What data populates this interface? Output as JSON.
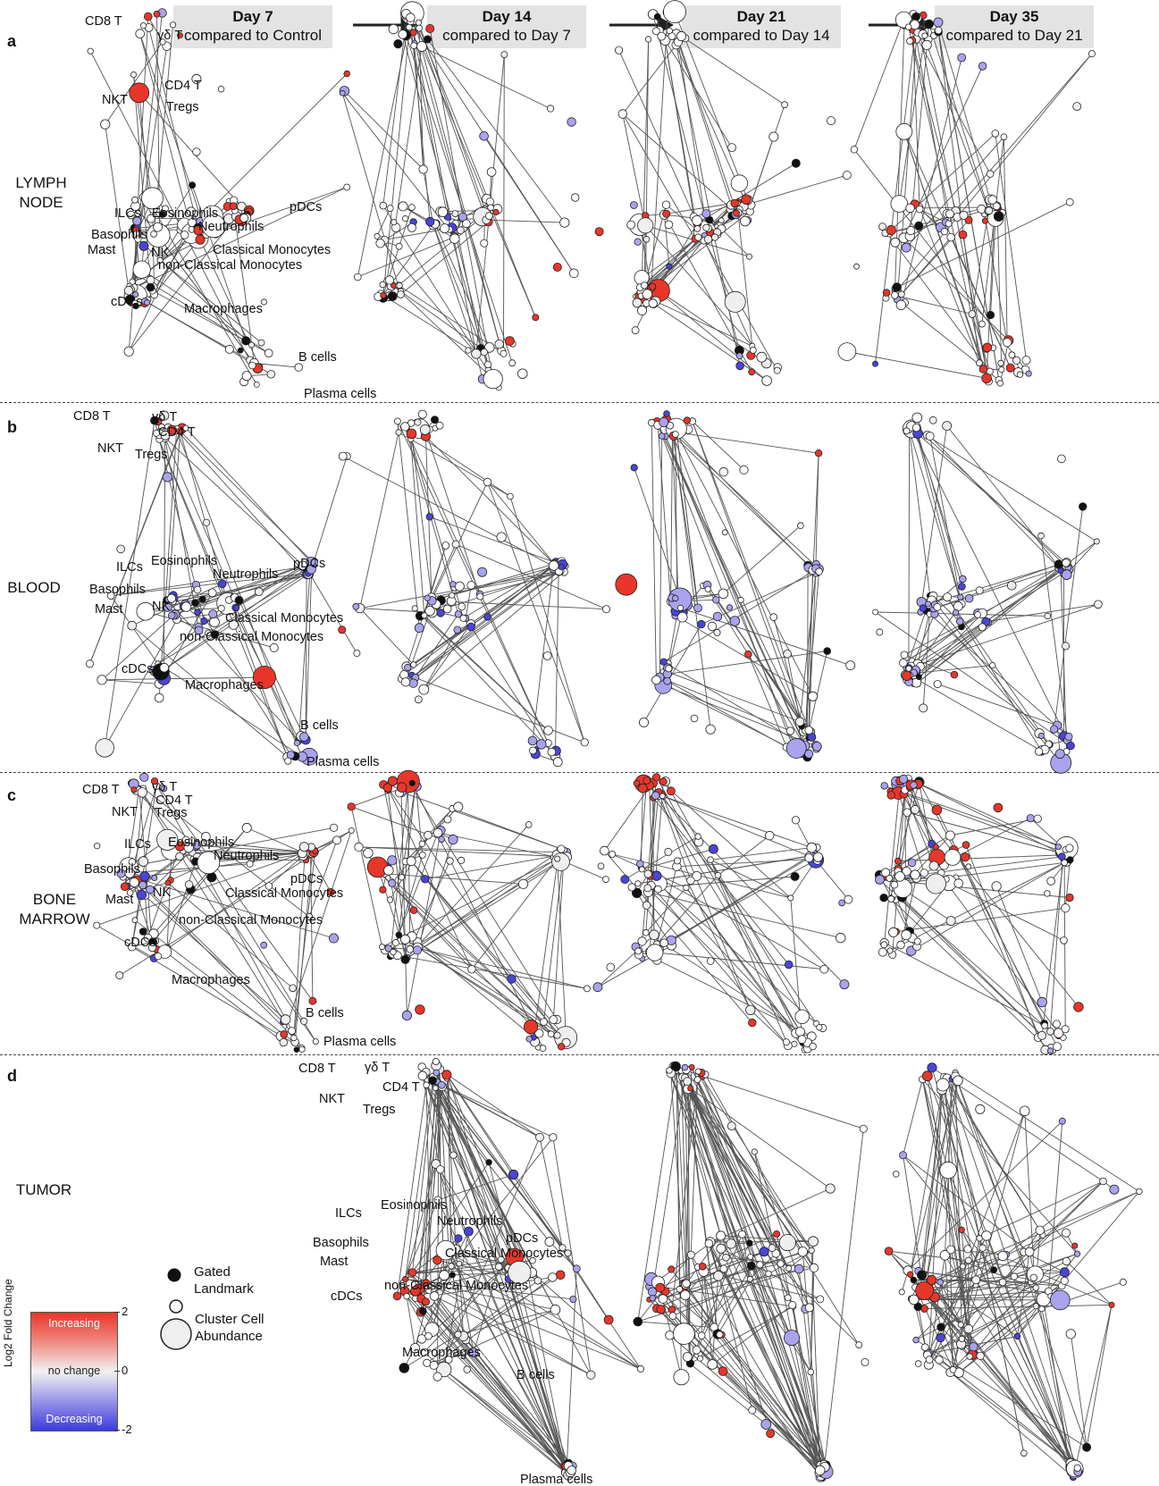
{
  "headers": [
    {
      "title": "Day 7",
      "subtitle": "compared to Control"
    },
    {
      "title": "Day 14",
      "subtitle": "compared to Day 7"
    },
    {
      "title": "Day 21",
      "subtitle": "compared to Day 14"
    },
    {
      "title": "Day 35",
      "subtitle": "compared to Day 21"
    }
  ],
  "panels": [
    {
      "letter": "a",
      "region_line1": "LYMPH",
      "region_line2": "NODE"
    },
    {
      "letter": "b",
      "region_line1": "BLOOD",
      "region_line2": ""
    },
    {
      "letter": "c",
      "region_line1": "BONE",
      "region_line2": "MARROW"
    },
    {
      "letter": "d",
      "region_line1": "TUMOR",
      "region_line2": ""
    }
  ],
  "cell_labels": {
    "cd8t": "CD8 T",
    "gdt": "γδ T",
    "cd4t": "CD4 T",
    "nkt": "NKT",
    "tregs": "Tregs",
    "ilcs": "ILCs",
    "eosinophils": "Eosinophils",
    "neutrophils": "Neutrophils",
    "pdcs": "pDCs",
    "basophils": "Basophils",
    "mast": "Mast",
    "nk": "NK",
    "classical_mono": "Classical Monocytes",
    "nonclassical_mono": "non-Classical Monocytes",
    "cdcs": "cDCs",
    "macrophages": "Macrophages",
    "bcells": "B cells",
    "plasma": "Plasma cells"
  },
  "legend": {
    "axis_title": "Log2 Fold Change",
    "increasing": "Increasing",
    "no_change": "no change",
    "decreasing": "Decreasing",
    "tick_max": "2",
    "tick_mid": "0",
    "tick_min": "-2",
    "gated_line1": "Gated",
    "gated_line2": "Landmark",
    "cluster_line1": "Cluster Cell",
    "cluster_line2": "Abundance",
    "color_increasing": "#e8362a",
    "color_nochange": "#f2f2f2",
    "color_decreasing": "#3b3bdc"
  }
}
